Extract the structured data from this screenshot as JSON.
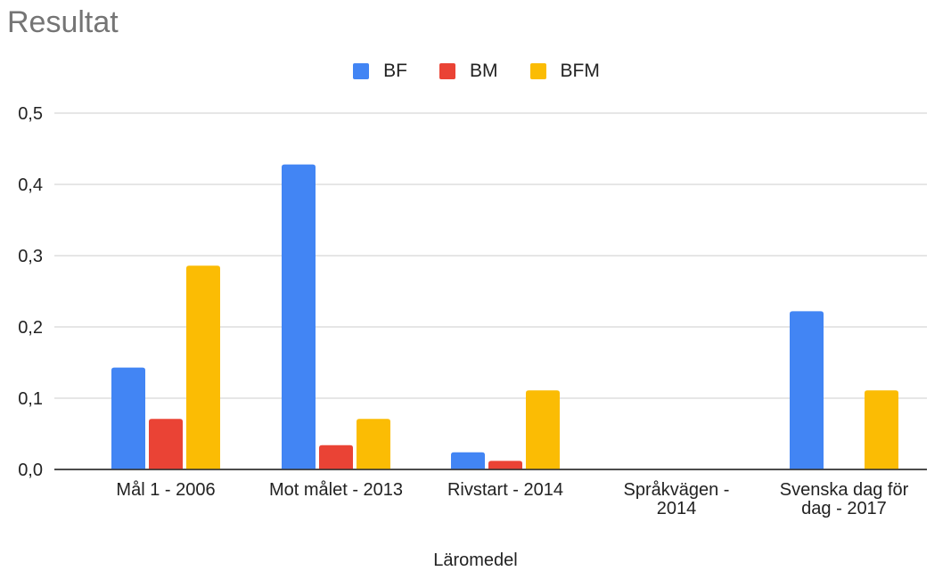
{
  "chart_data": {
    "type": "bar",
    "title": "Resultat",
    "xlabel": "Läromedel",
    "ylabel": "",
    "ylim": [
      0,
      0.5
    ],
    "yticks": [
      "0,0",
      "0,1",
      "0,2",
      "0,3",
      "0,4",
      "0,5"
    ],
    "grid": true,
    "legend_position": "top-center",
    "categories": [
      [
        "Mål 1 - 2006"
      ],
      [
        "Mot målet - 2013"
      ],
      [
        "Rivstart - 2014"
      ],
      [
        "Språkvägen -",
        "2014"
      ],
      [
        "Svenska dag för",
        "dag - 2017"
      ]
    ],
    "series": [
      {
        "name": "BF",
        "color": "#4285F4",
        "values": [
          0.143,
          0.428,
          0.024,
          0,
          0.222
        ]
      },
      {
        "name": "BM",
        "color": "#EA4335",
        "values": [
          0.071,
          0.034,
          0.012,
          0,
          0
        ]
      },
      {
        "name": "BFM",
        "color": "#FBBC04",
        "values": [
          0.286,
          0.071,
          0.111,
          0,
          0.111
        ]
      }
    ]
  }
}
